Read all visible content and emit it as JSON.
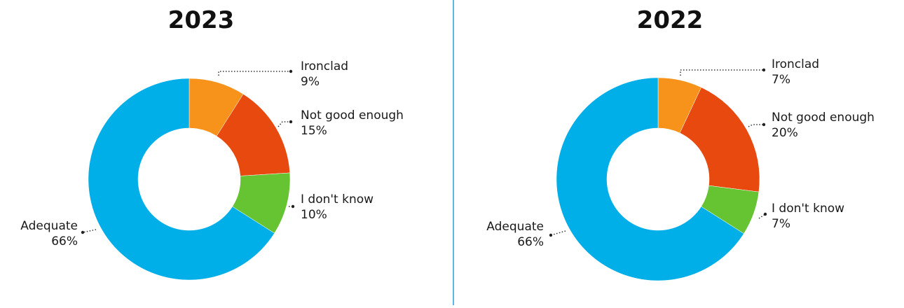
{
  "chart_data": [
    {
      "type": "pie",
      "title": "2023",
      "categories": [
        "Ironclad",
        "Not good enough",
        "I don't know",
        "Adequate"
      ],
      "values": [
        9,
        15,
        10,
        66
      ],
      "value_labels": [
        "9%",
        "15%",
        "10%",
        "66%"
      ],
      "colors": [
        "#F7931A",
        "#E8490F",
        "#66C331",
        "#00AEE8"
      ],
      "donut": true,
      "labels_position": "outside with leader lines"
    },
    {
      "type": "pie",
      "title": "2022",
      "categories": [
        "Ironclad",
        "Not good enough",
        "I don't know",
        "Adequate"
      ],
      "values": [
        7,
        20,
        7,
        66
      ],
      "value_labels": [
        "7%",
        "20%",
        "7%",
        "66%"
      ],
      "colors": [
        "#F7931A",
        "#E8490F",
        "#66C331",
        "#00AEE8"
      ],
      "donut": true,
      "labels_position": "outside with leader lines"
    }
  ],
  "divider_color": "#2A9FD8"
}
